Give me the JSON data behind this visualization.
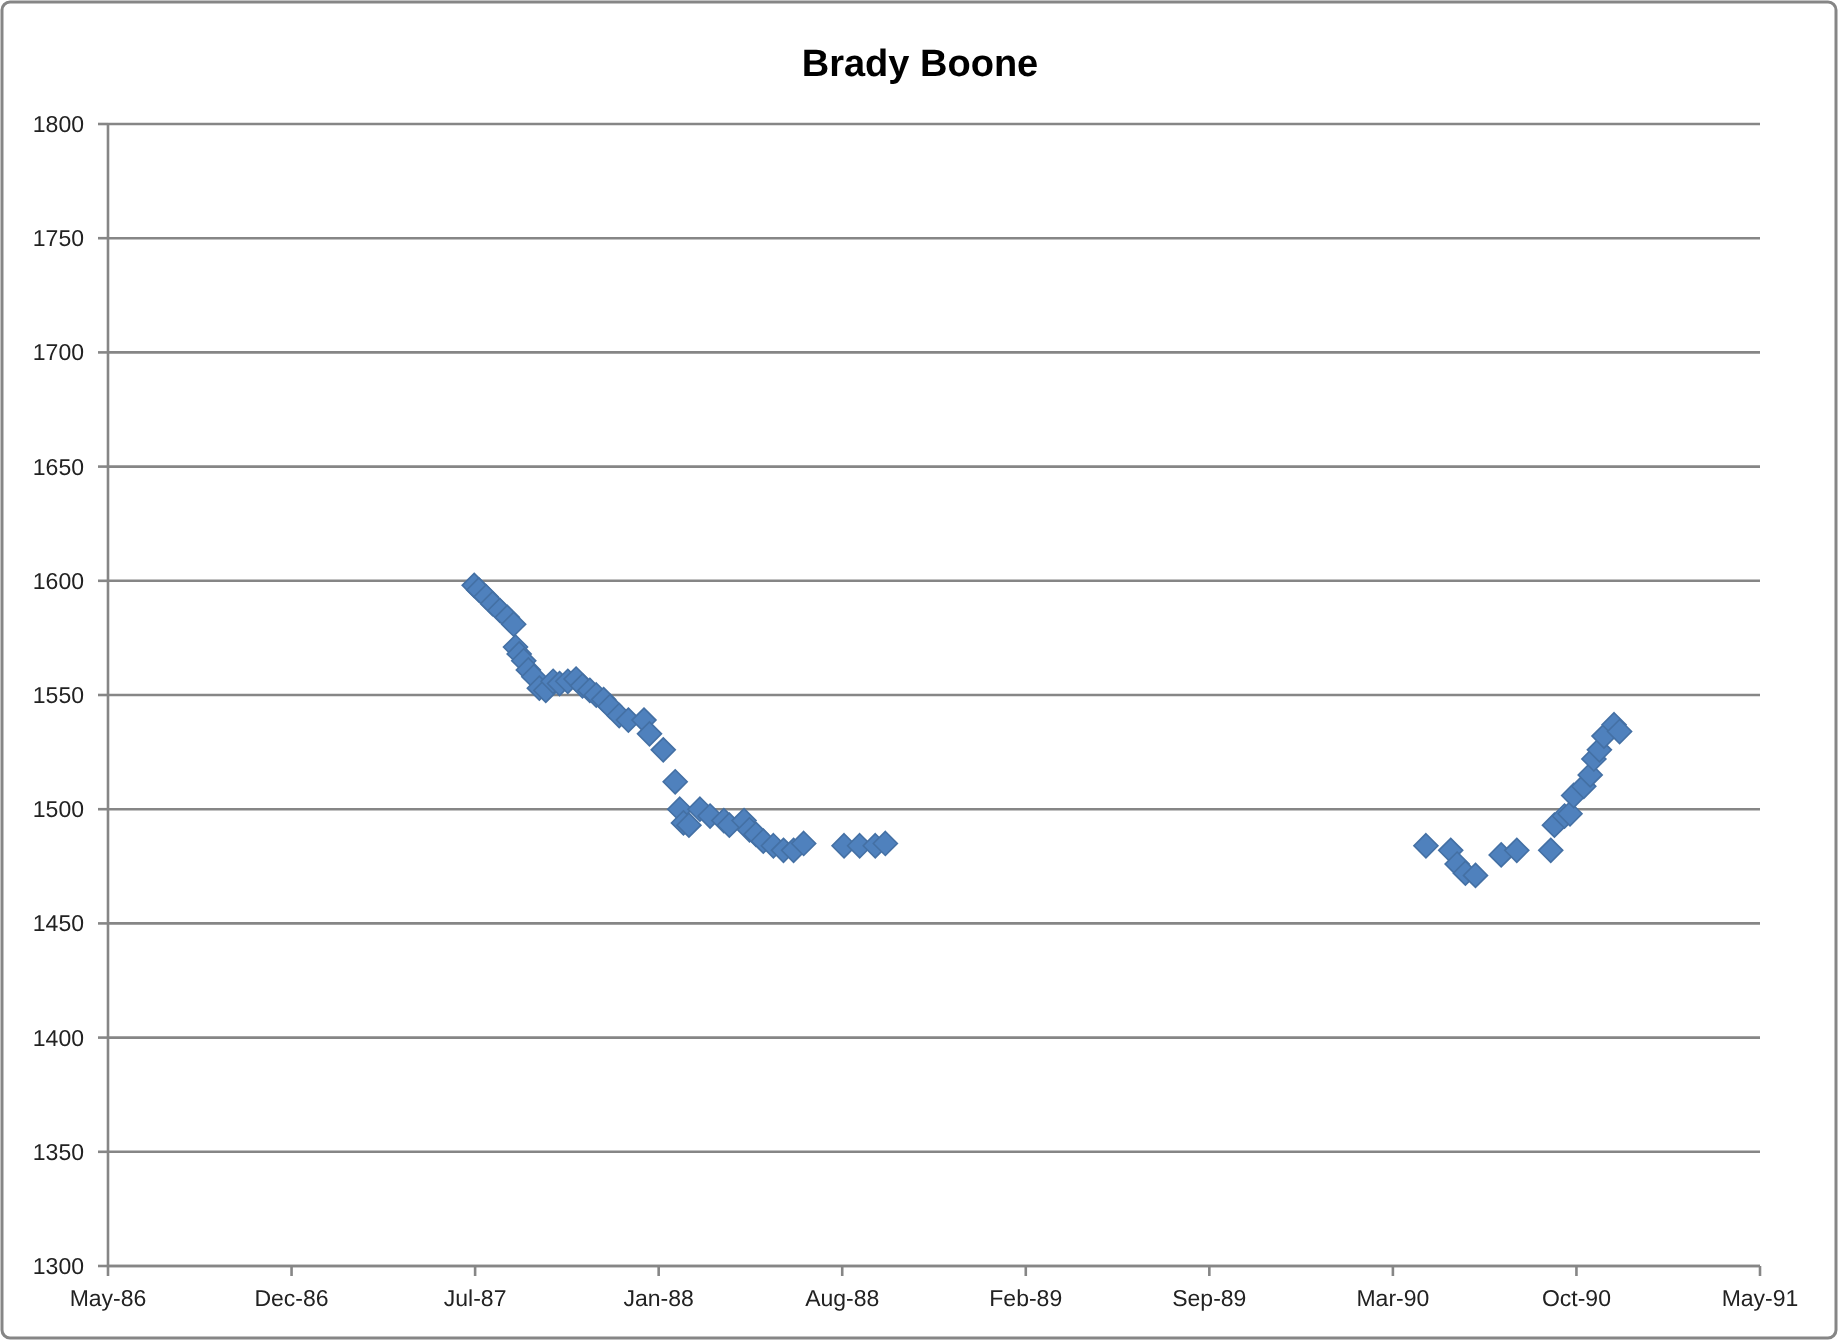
{
  "chart_data": {
    "type": "scatter",
    "title": "Brady Boone",
    "x": [
      "1987-06-30",
      "1987-07-05",
      "1987-07-13",
      "1987-07-20",
      "1987-07-28",
      "1987-08-05",
      "1987-08-12",
      "1987-08-14",
      "1987-08-18",
      "1987-08-23",
      "1987-08-28",
      "1987-09-03",
      "1987-09-09",
      "1987-09-16",
      "1987-09-24",
      "1987-10-01",
      "1987-10-10",
      "1987-10-19",
      "1987-10-26",
      "1987-11-03",
      "1987-11-10",
      "1987-11-18",
      "1987-11-25",
      "1987-12-05",
      "1987-12-15",
      "1988-01-01",
      "1988-01-07",
      "1988-01-22",
      "1988-02-04",
      "1988-02-09",
      "1988-02-13",
      "1988-02-19",
      "1988-03-02",
      "1988-03-13",
      "1988-03-28",
      "1988-04-03",
      "1988-04-19",
      "1988-04-25",
      "1988-05-02",
      "1988-05-10",
      "1988-05-21",
      "1988-06-01",
      "1988-06-12",
      "1988-06-23",
      "1988-08-06",
      "1988-08-23",
      "1988-09-09",
      "1988-09-20",
      "1990-05-02",
      "1990-05-29",
      "1990-06-05",
      "1990-06-14",
      "1990-06-25",
      "1990-07-23",
      "1990-08-09",
      "1990-09-15",
      "1990-09-19",
      "1990-09-30",
      "1990-10-06",
      "1990-10-10",
      "1990-10-21",
      "1990-10-28",
      "1990-11-01",
      "1990-11-07",
      "1990-11-12",
      "1990-11-23",
      "1990-11-29"
    ],
    "values": [
      1598,
      1596,
      1593,
      1590,
      1587,
      1584,
      1581,
      1571,
      1568,
      1565,
      1561,
      1558,
      1553,
      1552,
      1556,
      1555,
      1556,
      1557,
      1554,
      1552,
      1550,
      1548,
      1545,
      1541,
      1539,
      1539,
      1533,
      1526,
      1512,
      1500,
      1494,
      1493,
      1500,
      1497,
      1495,
      1493,
      1495,
      1491,
      1489,
      1486,
      1484,
      1482,
      1482,
      1485,
      1484,
      1484,
      1484,
      1485,
      1484,
      1482,
      1476,
      1472,
      1471,
      1480,
      1482,
      1482,
      1493,
      1497,
      1498,
      1506,
      1510,
      1515,
      1522,
      1526,
      1532,
      1537,
      1534
    ],
    "color": "#4f81bd",
    "marker": "diamond",
    "grid": "y",
    "xlim": [
      "1986-05-27",
      "1991-05-01"
    ],
    "xticks": [
      {
        "value": "1986-05-27",
        "label": "May-86"
      },
      {
        "value": "1986-12-13",
        "label": "Dec-86"
      },
      {
        "value": "1987-07-01",
        "label": "Jul-87"
      },
      {
        "value": "1988-01-17",
        "label": "Jan-88"
      },
      {
        "value": "1988-08-04",
        "label": "Aug-88"
      },
      {
        "value": "1989-02-20",
        "label": "Feb-89"
      },
      {
        "value": "1989-09-08",
        "label": "Sep-89"
      },
      {
        "value": "1990-03-27",
        "label": "Mar-90"
      },
      {
        "value": "1990-10-13",
        "label": "Oct-90"
      },
      {
        "value": "1991-05-01",
        "label": "May-91"
      }
    ],
    "ylim": [
      1300,
      1800
    ],
    "yticks": [
      1300,
      1350,
      1400,
      1450,
      1500,
      1550,
      1600,
      1650,
      1700,
      1750,
      1800
    ]
  }
}
